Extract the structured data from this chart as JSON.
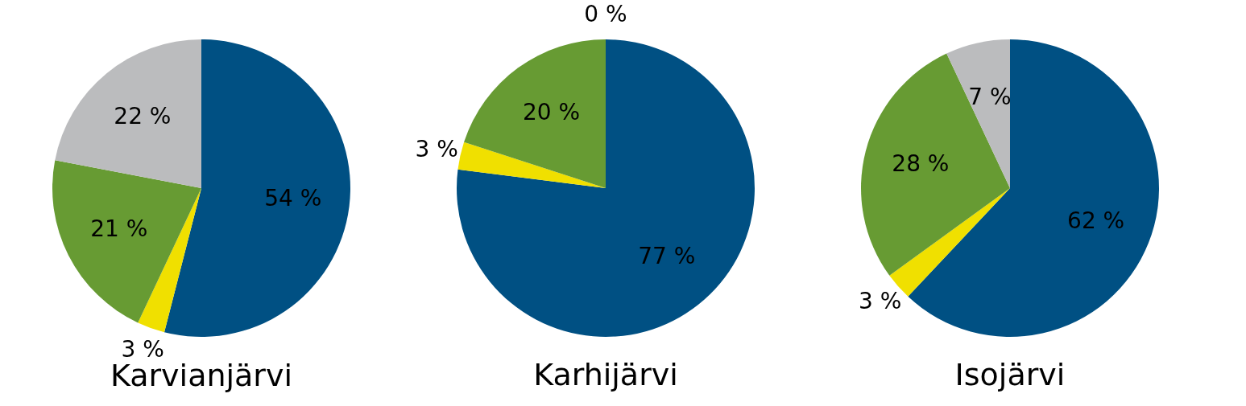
{
  "chart_data": [
    {
      "type": "pie",
      "title": "Karvianjärvi",
      "categories": [
        null,
        null,
        null,
        null
      ],
      "values": [
        54,
        3,
        21,
        22
      ],
      "colors": [
        "#005083",
        "#f0e000",
        "#679b33",
        "#bbbcbe"
      ],
      "value_labels": [
        "54 %",
        "3 %",
        "21 %",
        "22 %"
      ]
    },
    {
      "type": "pie",
      "title": "Karhijärvi",
      "categories": [
        null,
        null,
        null,
        null
      ],
      "values": [
        77,
        3,
        20,
        0
      ],
      "colors": [
        "#005083",
        "#f0e000",
        "#679b33",
        "#bbbcbe"
      ],
      "value_labels": [
        "77 %",
        "3 %",
        "20 %",
        "0 %"
      ]
    },
    {
      "type": "pie",
      "title": "Isojärvi",
      "categories": [
        null,
        null,
        null,
        null
      ],
      "values": [
        62,
        3,
        28,
        7
      ],
      "colors": [
        "#005083",
        "#f0e000",
        "#679b33",
        "#bbbcbe"
      ],
      "value_labels": [
        "62 %",
        "3 %",
        "28 %",
        "7 %"
      ]
    }
  ]
}
